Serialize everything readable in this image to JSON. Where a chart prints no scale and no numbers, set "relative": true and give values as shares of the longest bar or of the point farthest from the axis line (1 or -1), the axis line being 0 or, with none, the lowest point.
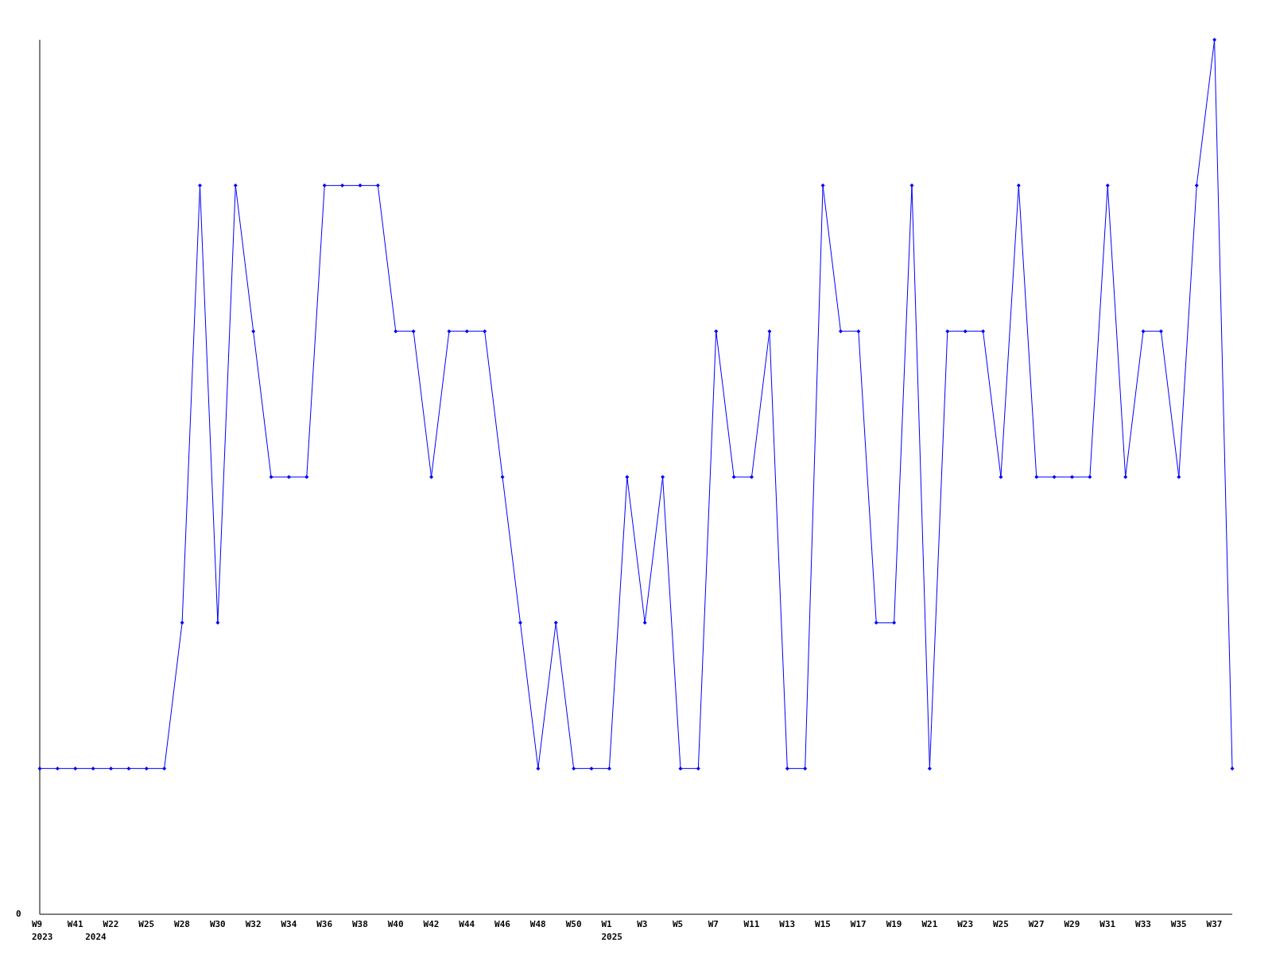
{
  "chart_data": {
    "type": "line",
    "relative": true,
    "marker": "diamond",
    "annotations": [
      "0"
    ],
    "categories": [
      "W9\n2023",
      null,
      "W41",
      "\n2024",
      "W22",
      null,
      "W25",
      null,
      "W28",
      null,
      "W30",
      null,
      "W32",
      null,
      "W34",
      null,
      "W36",
      null,
      "W38",
      null,
      "W40",
      null,
      "W42",
      null,
      "W44",
      null,
      "W46",
      null,
      "W48",
      null,
      "W50",
      null,
      "W1\n2025",
      null,
      "W3",
      null,
      "W5",
      null,
      "W7",
      null,
      "W11",
      null,
      "W13",
      null,
      "W15",
      null,
      "W17",
      null,
      "W19",
      null,
      "W21",
      null,
      "W23",
      null,
      "W25",
      null,
      "W27",
      null,
      "W29",
      null,
      "W31",
      null,
      "W33",
      null,
      "W35",
      null,
      "W37",
      null
    ],
    "series": [
      {
        "color": "#0000ff",
        "values": [
          0.1667,
          0.1667,
          0.1667,
          0.1667,
          0.1667,
          0.1667,
          0.1667,
          0.1667,
          0.3333,
          0.8333,
          0.3333,
          0.8333,
          0.6667,
          0.5,
          0.5,
          0.5,
          0.8333,
          0.8333,
          0.8333,
          0.8333,
          0.6667,
          0.6667,
          0.5,
          0.6667,
          0.6667,
          0.6667,
          0.5,
          0.3333,
          0.1667,
          0.3333,
          0.1667,
          0.1667,
          0.1667,
          0.5,
          0.3333,
          0.5,
          0.1667,
          0.1667,
          0.6667,
          0.5,
          0.5,
          0.6667,
          0.1667,
          0.1667,
          0.8333,
          0.6667,
          0.6667,
          0.3333,
          0.3333,
          0.8333,
          0.1667,
          0.6667,
          0.6667,
          0.6667,
          0.5,
          0.8333,
          0.5,
          0.5,
          0.5,
          0.5,
          0.8333,
          0.5,
          0.6667,
          0.6667,
          0.5,
          0.8333,
          1,
          0.1667
        ]
      }
    ]
  }
}
